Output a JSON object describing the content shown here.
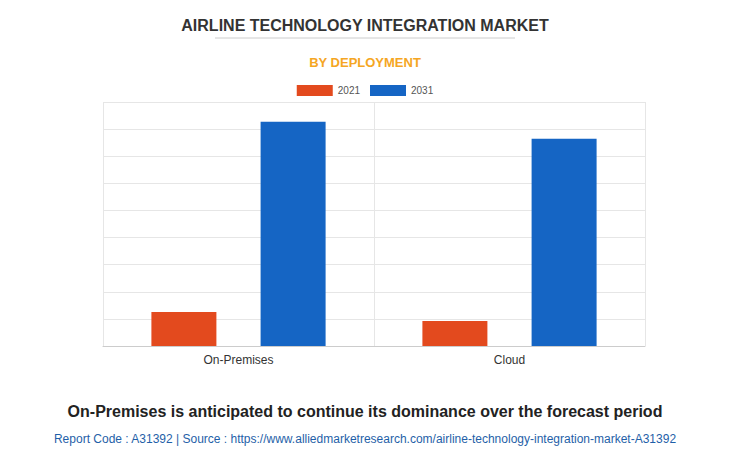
{
  "chart_data": {
    "type": "bar",
    "title": "AIRLINE TECHNOLOGY INTEGRATION MARKET",
    "subtitle": "BY DEPLOYMENT",
    "caption": "On-Premises is anticipated to continue its dominance over the forecast period",
    "source": "Report Code : A31392 | Source : https://www.alliedmarketresearch.com/airline-technology-integration-market-A31392",
    "categories": [
      "On-Premises",
      "Cloud"
    ],
    "series": [
      {
        "name": "2021",
        "color": "#e34a1e",
        "values": [
          1.25,
          0.92
        ]
      },
      {
        "name": "2031",
        "color": "#1565c4",
        "values": [
          8.27,
          7.64
        ]
      }
    ],
    "ylim": [
      0,
      9
    ],
    "yticks": [
      0,
      1,
      2,
      3,
      4,
      5,
      6,
      7,
      8,
      9
    ],
    "grid": true,
    "legend": "top",
    "tick_labels": "x"
  }
}
